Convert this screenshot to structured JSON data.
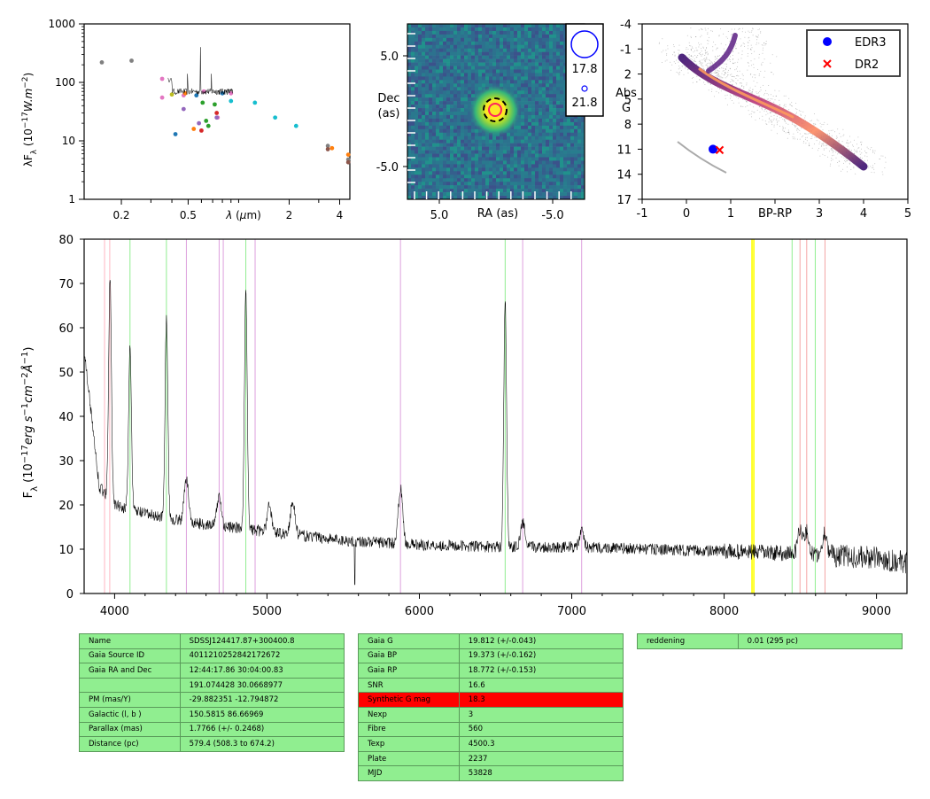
{
  "sed_plot": {
    "ylabel": "λF$_λ$ (10$^{-17}$W.m$^{-2}$)",
    "xlabel": "λ (μm)",
    "y_ticks": [
      "1",
      "10",
      "100",
      "1000"
    ],
    "x_ticks": [
      "0.2",
      "0.5",
      "2",
      "4"
    ]
  },
  "image_plot": {
    "xlabel": "RA (as)",
    "ylabel_line1": "Dec",
    "ylabel_line2": "(as)",
    "y_ticks": [
      "5.0",
      "-5.0"
    ],
    "x_ticks": [
      "5.0",
      "-5.0"
    ],
    "legend": [
      "17.8",
      "21.8"
    ]
  },
  "hr_plot": {
    "xlabel": "BP-RP",
    "ylabel_line1": "Abs",
    "ylabel_line2": "G",
    "y_ticks": [
      "-4",
      "-1",
      "2",
      "5",
      "8",
      "11",
      "14",
      "17"
    ],
    "x_ticks": [
      "-1",
      "0",
      "1",
      "3",
      "4",
      "5"
    ],
    "legend": [
      {
        "label": "EDR3",
        "color": "#0000ff",
        "marker": "dot"
      },
      {
        "label": "DR2",
        "color": "#ff0000",
        "marker": "cross"
      }
    ],
    "edr3_point": {
      "bp_rp": 0.6,
      "abs_g": 11.0
    },
    "dr2_point": {
      "bp_rp": 0.75,
      "abs_g": 11.1
    }
  },
  "spectrum_plot": {
    "ylabel": "F$_λ$ (10$^{-17}$erg s$^{-1}$cm$^{-2}$Å$^{-1}$)",
    "y_ticks": [
      "0",
      "10",
      "20",
      "30",
      "40",
      "50",
      "60",
      "70",
      "80"
    ],
    "x_ticks": [
      "4000",
      "5000",
      "6000",
      "7000",
      "8000",
      "9000"
    ]
  },
  "chart_data": [
    {
      "type": "scatter",
      "x_scale": "log",
      "y_scale": "log",
      "xlim": [
        0.12,
        4.6
      ],
      "ylim": [
        1,
        1000
      ],
      "series": [
        {
          "color": "#808080",
          "points": [
            [
              0.153,
              220
            ],
            [
              0.23,
              235
            ],
            [
              3.4,
              8.2
            ],
            [
              4.5,
              4.8
            ]
          ]
        },
        {
          "color": "#e377c2",
          "points": [
            [
              0.35,
              115
            ],
            [
              0.35,
              55
            ],
            [
              0.47,
              60
            ],
            [
              0.62,
              70
            ],
            [
              0.75,
              25
            ],
            [
              0.9,
              65
            ]
          ]
        },
        {
          "color": "#17becf",
          "points": [
            [
              0.9,
              48
            ],
            [
              1.25,
              45
            ],
            [
              1.65,
              25
            ],
            [
              2.2,
              18
            ]
          ]
        },
        {
          "color": "#2ca02c",
          "points": [
            [
              0.61,
              45
            ],
            [
              0.64,
              22
            ],
            [
              0.66,
              18
            ],
            [
              0.72,
              42
            ]
          ]
        },
        {
          "color": "#1f77b4",
          "points": [
            [
              0.42,
              13
            ],
            [
              0.56,
              60
            ],
            [
              0.8,
              65
            ]
          ]
        },
        {
          "color": "#ff7f0e",
          "points": [
            [
              0.54,
              16
            ],
            [
              0.48,
              65
            ],
            [
              3.6,
              7.5
            ],
            [
              4.5,
              5.8
            ]
          ]
        },
        {
          "color": "#d62728",
          "points": [
            [
              0.6,
              15
            ],
            [
              0.74,
              30
            ]
          ]
        },
        {
          "color": "#9467bd",
          "points": [
            [
              0.47,
              35
            ],
            [
              0.58,
              20
            ],
            [
              0.74,
              25
            ]
          ]
        },
        {
          "color": "#bcbd22",
          "points": [
            [
              0.4,
              62
            ]
          ]
        },
        {
          "color": "#8c564b",
          "points": [
            [
              3.4,
              7.2
            ],
            [
              4.5,
              4.3
            ]
          ]
        }
      ],
      "spectrum_overlay": {
        "color": "#000000",
        "x_range": [
          0.38,
          0.92
        ],
        "level": 70,
        "peak": 400
      }
    },
    {
      "type": "heatmap",
      "x_ticks": [
        5.0,
        -5.0
      ],
      "y_ticks": [
        5.0,
        -5.0
      ],
      "source_center": [
        0.0,
        0.0
      ],
      "legend_magnitudes": [
        17.8,
        21.8
      ]
    },
    {
      "type": "scatter",
      "xlabel": "BP-RP",
      "ylabel": "Abs G",
      "xlim": [
        -1,
        5
      ],
      "ylim": [
        17,
        -4
      ],
      "series": [
        {
          "name": "EDR3",
          "points": [
            [
              0.6,
              11.0
            ]
          ]
        },
        {
          "name": "DR2",
          "points": [
            [
              0.75,
              11.1
            ]
          ]
        }
      ]
    },
    {
      "type": "line",
      "xlabel": "",
      "ylabel": "F$_λ$ (10$^{-17}$erg s$^{-1}$cm$^{-2}$Å$^{-1}$)",
      "xlim": [
        3800,
        9200
      ],
      "ylim": [
        0,
        80
      ],
      "emission_lines": [
        {
          "x": 3970,
          "peak": 72
        },
        {
          "x": 4101,
          "peak": 56
        },
        {
          "x": 4340,
          "peak": 62
        },
        {
          "x": 4471,
          "peak": 26
        },
        {
          "x": 4686,
          "peak": 22
        },
        {
          "x": 4861,
          "peak": 69
        },
        {
          "x": 5016,
          "peak": 20
        },
        {
          "x": 5169,
          "peak": 21
        },
        {
          "x": 5876,
          "peak": 24
        },
        {
          "x": 6563,
          "peak": 67
        },
        {
          "x": 6678,
          "peak": 16
        },
        {
          "x": 7065,
          "peak": 14
        },
        {
          "x": 8498,
          "peak": 15
        },
        {
          "x": 8542,
          "peak": 14
        },
        {
          "x": 8662,
          "peak": 14
        }
      ],
      "continuum": [
        [
          3800,
          55
        ],
        [
          3900,
          24
        ],
        [
          4000,
          20
        ],
        [
          4200,
          18
        ],
        [
          4500,
          16
        ],
        [
          5000,
          14
        ],
        [
          5500,
          12
        ],
        [
          6000,
          11
        ],
        [
          6500,
          10.5
        ],
        [
          7000,
          10.5
        ],
        [
          7500,
          10
        ],
        [
          8000,
          9.5
        ],
        [
          8500,
          9
        ],
        [
          9000,
          8
        ],
        [
          9200,
          7
        ]
      ],
      "reference_lines": [
        {
          "x": 3934,
          "color": "#ffb6c1"
        },
        {
          "x": 3968,
          "color": "#ffb6c1"
        },
        {
          "x": 4101,
          "color": "#90ee90"
        },
        {
          "x": 4340,
          "color": "#90ee90"
        },
        {
          "x": 4471,
          "color": "#dda0dd"
        },
        {
          "x": 4686,
          "color": "#dda0dd"
        },
        {
          "x": 4713,
          "color": "#dda0dd"
        },
        {
          "x": 4861,
          "color": "#90ee90"
        },
        {
          "x": 4922,
          "color": "#dda0dd"
        },
        {
          "x": 5876,
          "color": "#dda0dd"
        },
        {
          "x": 6563,
          "color": "#90ee90"
        },
        {
          "x": 6678,
          "color": "#dda0dd"
        },
        {
          "x": 7065,
          "color": "#dda0dd"
        },
        {
          "x": 8183,
          "color": "#ffff00"
        },
        {
          "x": 8195,
          "color": "#ffff00"
        },
        {
          "x": 8446,
          "color": "#90ee90"
        },
        {
          "x": 8498,
          "color": "#f4a6a6"
        },
        {
          "x": 8542,
          "color": "#f4a6a6"
        },
        {
          "x": 8598,
          "color": "#90ee90"
        },
        {
          "x": 8662,
          "color": "#f4a6a6"
        }
      ]
    }
  ],
  "table1": [
    [
      "Name",
      "SDSSJ124417.87+300400.8"
    ],
    [
      "Gaia Source ID",
      "4011210252842172672"
    ],
    [
      "Gaia RA and Dec",
      "12:44:17.86    30:04:00.83"
    ],
    [
      "",
      "191.074428    30.0668977"
    ],
    [
      "PM (mas/Y)",
      "-29.882351    -12.794872"
    ],
    [
      "Galactic (l, b )",
      "150.5815    86.66969"
    ],
    [
      "Parallax (mas)",
      "1.7766 (+/- 0.2468)"
    ],
    [
      "Distance (pc)",
      "579.4 (508.3 to 674.2)"
    ]
  ],
  "table2": [
    [
      "Gaia G",
      "19.812 (+/-0.043)"
    ],
    [
      "Gaia BP",
      "19.373 (+/-0.162)"
    ],
    [
      "Gaia RP",
      "18.772 (+/-0.153)"
    ],
    [
      "SNR",
      "16.6"
    ],
    [
      "Synthetic G mag",
      "18.3"
    ],
    [
      "Nexp",
      "3"
    ],
    [
      "Fibre",
      "560"
    ],
    [
      "Texp",
      "4500.3"
    ],
    [
      "Plate",
      "2237"
    ],
    [
      "MJD",
      "53828"
    ]
  ],
  "table3": [
    [
      "reddening",
      "0.01 (295 pc)"
    ]
  ],
  "colors": {
    "table_bg": "#90ee90",
    "highlight": "#ff0000"
  }
}
